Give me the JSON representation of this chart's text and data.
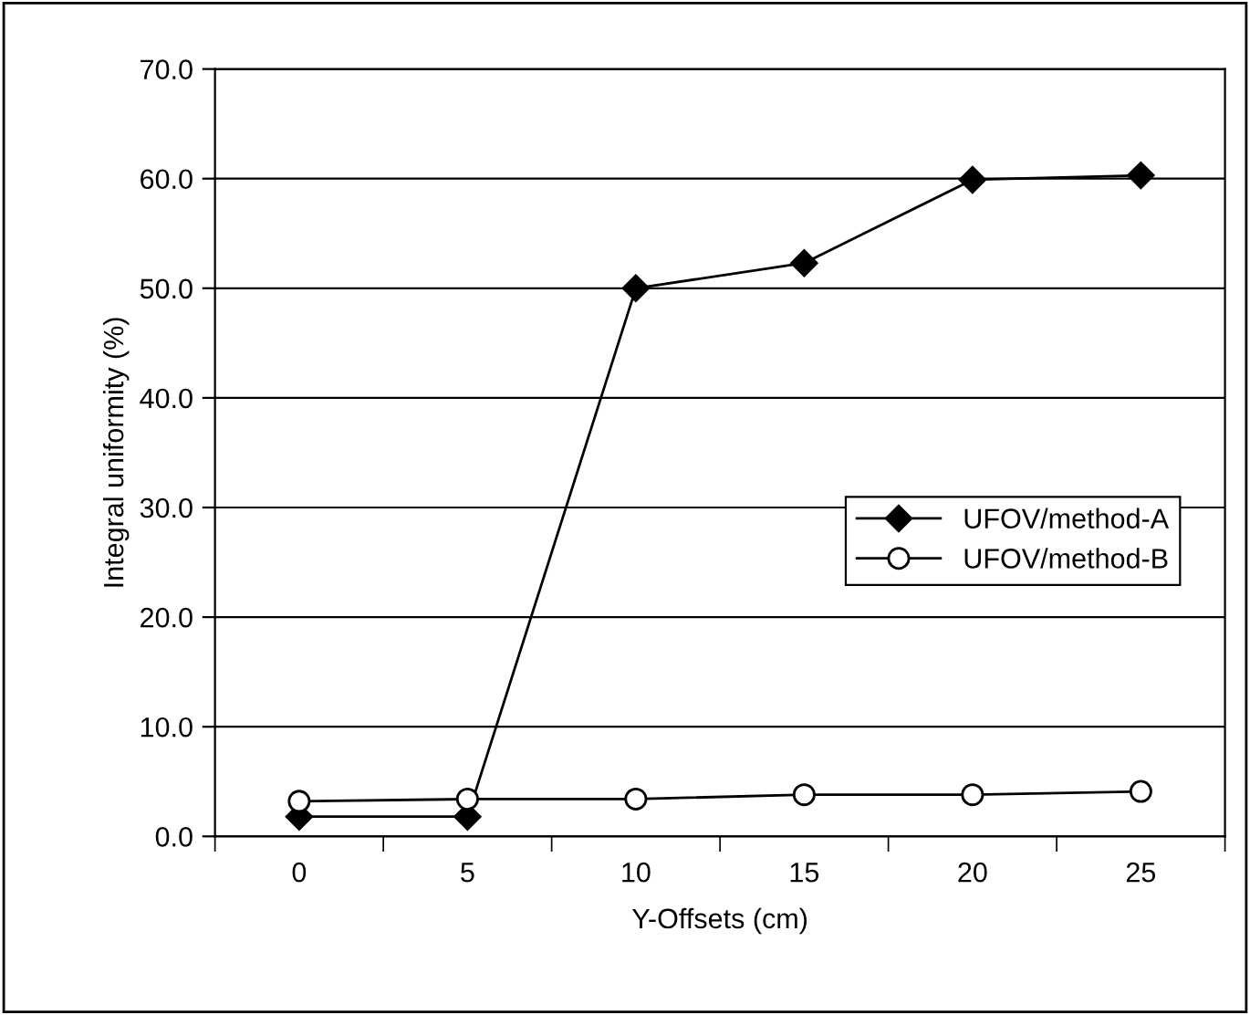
{
  "chart_data": {
    "type": "line",
    "xlabel": "Y-Offsets (cm)",
    "ylabel": "Integral uniformity (%)",
    "categories": [
      "0",
      "5",
      "10",
      "15",
      "20",
      "25"
    ],
    "series": [
      {
        "name": "UFOV/method-A",
        "color": "#000000",
        "marker": "diamond",
        "values": [
          1.8,
          1.8,
          50.0,
          52.3,
          59.9,
          60.3
        ]
      },
      {
        "name": "UFOV/method-B",
        "color": "#000000",
        "marker": "circle",
        "values": [
          3.2,
          3.4,
          3.4,
          3.8,
          3.8,
          4.1
        ]
      }
    ],
    "ylim": [
      0,
      70
    ],
    "yticks": [
      {
        "value": 0,
        "label": "0.0"
      },
      {
        "value": 10,
        "label": "10.0"
      },
      {
        "value": 20,
        "label": "20.0"
      },
      {
        "value": 30,
        "label": "30.0"
      },
      {
        "value": 40,
        "label": "40.0"
      },
      {
        "value": 50,
        "label": "50.0"
      },
      {
        "value": 60,
        "label": "60.0"
      },
      {
        "value": 70,
        "label": "70.0"
      }
    ],
    "grid": "y",
    "legend": "right",
    "line_style": "solid"
  }
}
